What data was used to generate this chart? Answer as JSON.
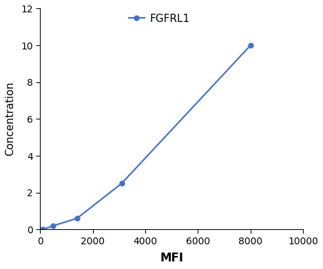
{
  "x": [
    100,
    500,
    1400,
    3100,
    8000
  ],
  "y": [
    0.0,
    0.2,
    0.6,
    2.5,
    10.0
  ],
  "line_color": "#4472C4",
  "marker": "o",
  "marker_size": 5,
  "legend_label": "FGFRL1",
  "xlabel": "MFI",
  "ylabel": "Concentration",
  "xlim": [
    0,
    10000
  ],
  "ylim": [
    0,
    12
  ],
  "xticks": [
    0,
    2000,
    4000,
    6000,
    8000,
    10000
  ],
  "yticks": [
    0,
    2,
    4,
    6,
    8,
    10,
    12
  ],
  "xlabel_fontsize": 12,
  "ylabel_fontsize": 11,
  "tick_fontsize": 10,
  "legend_fontsize": 11,
  "background_color": "#ffffff",
  "linewidth": 1.6
}
